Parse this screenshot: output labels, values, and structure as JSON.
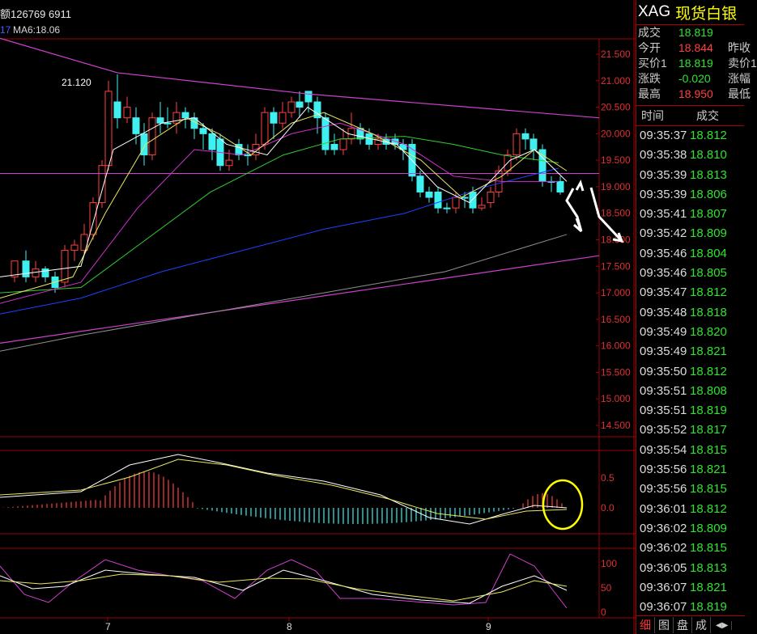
{
  "header": {
    "volume_text": "额126769 6911",
    "ma_prefix": "17",
    "ma6_text": "MA6:18.06"
  },
  "quote": {
    "symbol": "XAG",
    "name": "现货白银",
    "rows": [
      {
        "label": "成交",
        "value": "18.819",
        "color": "#2fe32f",
        "right": ""
      },
      {
        "label": "今开",
        "value": "18.844",
        "color": "#ff4040",
        "right": "昨收"
      },
      {
        "label": "买价1",
        "value": "18.819",
        "color": "#2fe32f",
        "right": "卖价1"
      },
      {
        "label": "涨跌",
        "value": "-0.020",
        "color": "#2fe32f",
        "right": "涨幅"
      },
      {
        "label": "最高",
        "value": "18.950",
        "color": "#ff4040",
        "right": "最低"
      }
    ]
  },
  "ticks_header": {
    "time": "时间",
    "price": "成交"
  },
  "ticks": [
    [
      "09:35:37",
      "18.812"
    ],
    [
      "09:35:38",
      "18.810"
    ],
    [
      "09:35:39",
      "18.813"
    ],
    [
      "09:35:39",
      "18.806"
    ],
    [
      "09:35:41",
      "18.807"
    ],
    [
      "09:35:42",
      "18.809"
    ],
    [
      "09:35:46",
      "18.804"
    ],
    [
      "09:35:46",
      "18.805"
    ],
    [
      "09:35:47",
      "18.812"
    ],
    [
      "09:35:48",
      "18.818"
    ],
    [
      "09:35:49",
      "18.820"
    ],
    [
      "09:35:49",
      "18.821"
    ],
    [
      "09:35:50",
      "18.812"
    ],
    [
      "09:35:51",
      "18.808"
    ],
    [
      "09:35:51",
      "18.819"
    ],
    [
      "09:35:52",
      "18.817"
    ],
    [
      "09:35:54",
      "18.815"
    ],
    [
      "09:35:56",
      "18.821"
    ],
    [
      "09:35:56",
      "18.815"
    ],
    [
      "09:36:01",
      "18.812"
    ],
    [
      "09:36:02",
      "18.809"
    ],
    [
      "09:36:02",
      "18.815"
    ],
    [
      "09:36:05",
      "18.813"
    ],
    [
      "09:36:07",
      "18.821"
    ],
    [
      "09:36:07",
      "18.819"
    ]
  ],
  "tabs": [
    "细",
    "图",
    "盘",
    "成"
  ],
  "price_axis": [
    "21.500",
    "21.000",
    "20.500",
    "20.000",
    "19.500",
    "19.000",
    "18.500",
    "18.000",
    "17.500",
    "17.000",
    "16.500",
    "16.000",
    "15.500",
    "15.000",
    "14.500"
  ],
  "peak_label": "21.120",
  "macd_axis": [
    "0.5",
    "0.0"
  ],
  "kdj_axis": [
    "100",
    "50",
    "0"
  ],
  "x_labels": [
    "7",
    "8",
    "9"
  ],
  "colors": {
    "up": "#ff4040",
    "down": "#40f0f0",
    "grid": "#a00000",
    "axis_text": "#e03030"
  }
}
